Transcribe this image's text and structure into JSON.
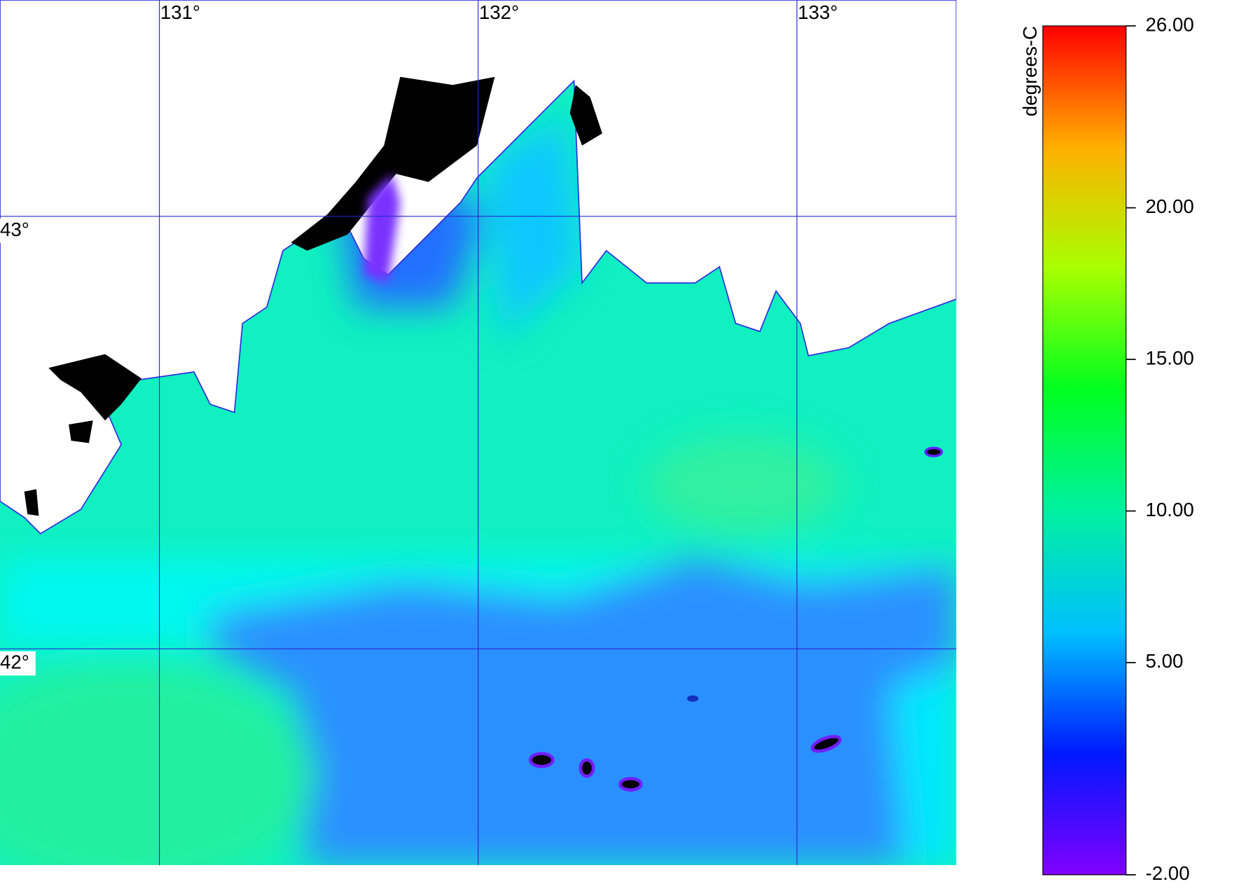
{
  "chart_data": {
    "type": "map",
    "xlim": [
      130.5,
      133.5
    ],
    "xticks": [
      {
        "value": 131,
        "label": "131°"
      },
      {
        "value": 132,
        "label": "132°"
      },
      {
        "value": 133,
        "label": "133°"
      }
    ],
    "ylim": [
      41.5,
      43.5
    ],
    "yticks": [
      {
        "value": 42,
        "label": "42°"
      },
      {
        "value": 43,
        "label": "43°"
      }
    ],
    "grid_color": "#2828d0",
    "colorbar": {
      "label": "degrees-C",
      "lim": [
        -2,
        26
      ],
      "ticks": [
        {
          "value": 26,
          "label": "26.00"
        },
        {
          "value": 20,
          "label": "20.00"
        },
        {
          "value": 15,
          "label": "15.00"
        },
        {
          "value": 10,
          "label": "10.00"
        },
        {
          "value": 5,
          "label": "5.00"
        },
        {
          "value": -2,
          "label": "-2.00"
        }
      ],
      "colors": [
        "#8000ff",
        "#0018ff",
        "#00c0ff",
        "#00f0a0",
        "#00ff20",
        "#a8ff00",
        "#ffb000",
        "#ff0000"
      ]
    }
  }
}
